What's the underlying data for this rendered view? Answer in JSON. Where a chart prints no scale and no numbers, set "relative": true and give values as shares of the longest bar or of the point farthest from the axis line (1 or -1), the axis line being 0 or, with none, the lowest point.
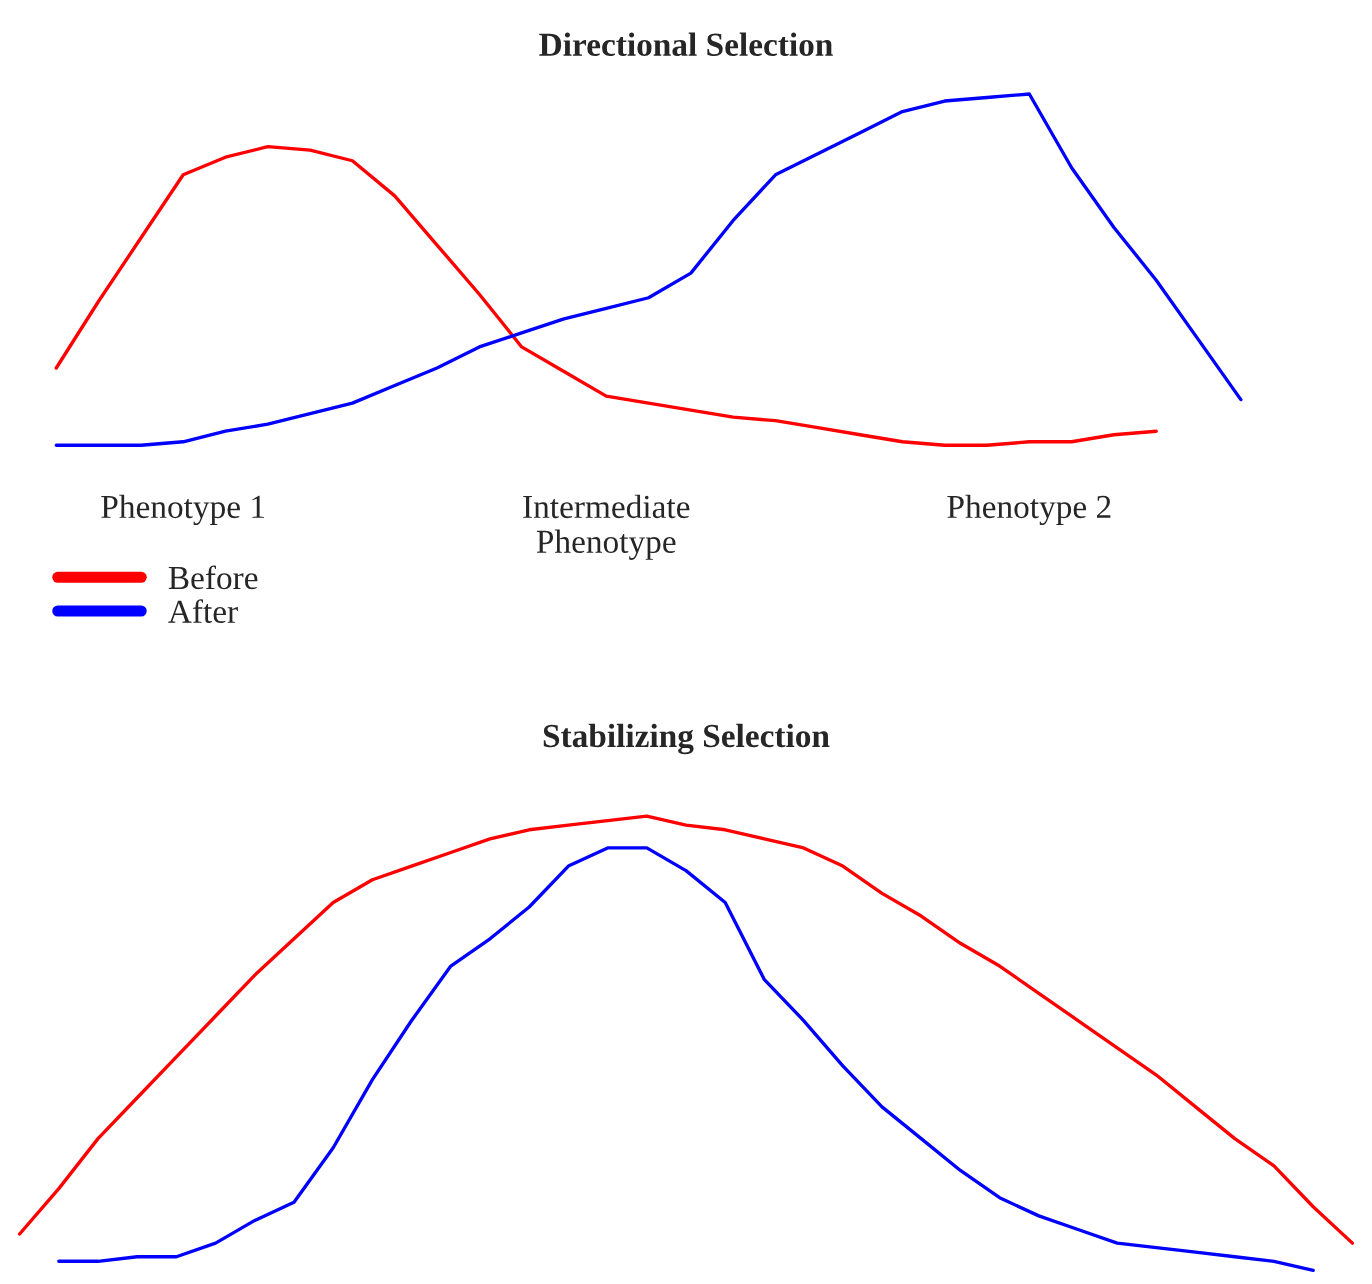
{
  "chart_data": [
    {
      "type": "line",
      "title": "Directional Selection",
      "relative": true,
      "categories": [
        null,
        null,
        null,
        null,
        "Phenotype 1",
        null,
        null,
        null,
        null,
        null,
        null,
        null,
        null,
        null,
        "Intermediate\nPhenotype",
        null,
        null,
        null,
        null,
        null,
        null,
        null,
        null,
        null,
        "Phenotype 2",
        null,
        null,
        null,
        null,
        null
      ],
      "tick_labels": "x",
      "legend": "bottom left",
      "marker": "none",
      "line_style": "solid",
      "series": [
        {
          "name": "Before",
          "color": "#ff0000",
          "values": [
            null,
            0.22,
            0.41,
            0.59,
            0.77,
            0.82,
            0.85,
            0.84,
            0.81,
            0.71,
            0.57,
            0.43,
            0.28,
            0.21,
            0.14,
            0.12,
            0.1,
            0.08,
            0.07,
            0.05,
            0.03,
            0.01,
            0,
            0,
            0.01,
            0.01,
            0.03,
            0.04,
            null,
            null
          ]
        },
        {
          "name": "After",
          "color": "#0000ff",
          "values": [
            null,
            0,
            0,
            0,
            0.01,
            0.04,
            0.06,
            0.09,
            0.12,
            0.17,
            0.22,
            0.28,
            0.32,
            0.36,
            0.39,
            0.42,
            0.49,
            0.64,
            0.77,
            0.83,
            0.89,
            0.95,
            0.98,
            0.99,
            1,
            0.79,
            0.62,
            0.47,
            0.3,
            0.13
          ]
        }
      ]
    },
    {
      "type": "line",
      "title": "Stabilizing Selection",
      "relative": true,
      "categories": [
        null,
        null,
        null,
        null,
        null,
        null,
        null,
        null,
        null,
        null,
        null,
        null,
        null,
        null,
        null,
        null,
        null,
        null,
        null,
        null,
        null,
        null,
        null,
        null,
        null,
        null,
        null,
        null,
        null,
        null,
        null,
        null,
        null,
        null,
        null
      ],
      "tick_labels": false,
      "marker": "none",
      "line_style": "solid",
      "series": [
        {
          "color": "#ff0000",
          "values": [
            0.08,
            0.18,
            0.29,
            0.38,
            0.47,
            0.56,
            0.65,
            0.73,
            0.81,
            0.86,
            0.89,
            0.92,
            0.95,
            0.97,
            0.98,
            0.99,
            1,
            0.98,
            0.97,
            0.95,
            0.93,
            0.89,
            0.83,
            0.78,
            0.72,
            0.67,
            0.61,
            0.55,
            0.49,
            0.43,
            0.36,
            0.29,
            0.23,
            0.14,
            0.06
          ]
        },
        {
          "color": "#0000ff",
          "values": [
            null,
            0.02,
            0.02,
            0.03,
            0.03,
            0.06,
            0.11,
            0.15,
            0.27,
            0.42,
            0.55,
            0.67,
            0.73,
            0.8,
            0.89,
            0.93,
            0.93,
            0.88,
            0.81,
            0.64,
            0.55,
            0.45,
            0.36,
            0.29,
            0.22,
            0.16,
            0.12,
            0.09,
            0.06,
            0.05,
            0.04,
            0.03,
            0.02,
            0,
            null
          ]
        }
      ]
    }
  ]
}
